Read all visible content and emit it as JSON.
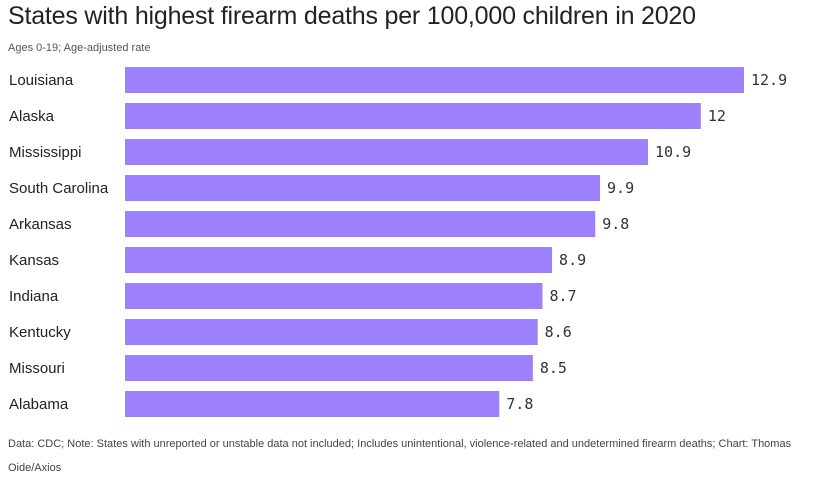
{
  "colors": {
    "bar": "#9d80fb",
    "text": "#222222",
    "muted": "#555555"
  },
  "chart_data": {
    "type": "bar",
    "orientation": "horizontal",
    "title": "States with highest firearm deaths per 100,000 children in 2020",
    "subtitle": "Ages 0-19; Age-adjusted rate",
    "categories": [
      "Louisiana",
      "Alaska",
      "Mississippi",
      "South Carolina",
      "Arkansas",
      "Kansas",
      "Indiana",
      "Kentucky",
      "Missouri",
      "Alabama"
    ],
    "values": [
      12.9,
      12,
      10.9,
      9.9,
      9.8,
      8.9,
      8.7,
      8.6,
      8.5,
      7.8
    ],
    "value_labels": [
      "12.9",
      "12",
      "10.9",
      "9.9",
      "9.8",
      "8.9",
      "8.7",
      "8.6",
      "8.5",
      "7.8"
    ],
    "xlabel": "",
    "ylabel": "",
    "xlim": [
      0,
      12.9
    ],
    "grid": false,
    "legend": "none",
    "footnote": "Data: CDC; Note: States with unreported or unstable data not included; Includes unintentional, violence-related and undetermined firearm deaths; Chart: Thomas Oide/Axios"
  }
}
